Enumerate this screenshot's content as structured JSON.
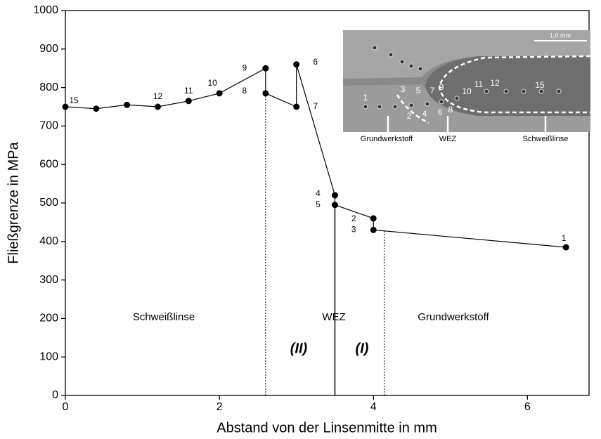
{
  "chart_data": {
    "type": "line",
    "xlabel": "Abstand von der Linsenmitte in mm",
    "ylabel": "Fließgrenze in MPa",
    "x": [
      0,
      0.4,
      0.8,
      1.2,
      1.6,
      2.0,
      2.6,
      2.6,
      3.0,
      3.0,
      3.5,
      3.5,
      4.0,
      4.0,
      6.5
    ],
    "series": [
      {
        "name": null,
        "color": "#000000",
        "values": [
          750,
          745,
          755,
          750,
          765,
          785,
          850,
          785,
          750,
          860,
          520,
          495,
          460,
          430,
          385
        ],
        "point_labels": [
          "15",
          null,
          null,
          "12",
          "11",
          "10",
          "9",
          "8",
          "7",
          "6",
          "4",
          "5",
          "2",
          "3",
          "1"
        ]
      }
    ],
    "xlim": [
      0,
      6.8
    ],
    "xticks": [
      0,
      2,
      4,
      6
    ],
    "ylim": [
      0,
      1000
    ],
    "yticks": [
      0,
      100,
      200,
      300,
      400,
      500,
      600,
      700,
      800,
      900,
      1000
    ],
    "vlines": [
      {
        "x": 2.6,
        "style": "dotted"
      },
      {
        "x": 3.5,
        "style": "solid"
      },
      {
        "x": 4.14,
        "style": "dotted"
      }
    ],
    "annotations": [
      "Schweißlinse",
      "WEZ",
      "Grundwerkstoff",
      "(II)",
      "(I)"
    ]
  },
  "inset": {
    "scale": "1,0 mm",
    "numbers": [
      "1",
      "2",
      "3",
      "4",
      "5",
      "6",
      "7",
      "8",
      "9",
      "10",
      "11",
      "12",
      "15"
    ],
    "labels": [
      "Grundwerkstoff",
      "WEZ",
      "Schweißlinse"
    ]
  }
}
